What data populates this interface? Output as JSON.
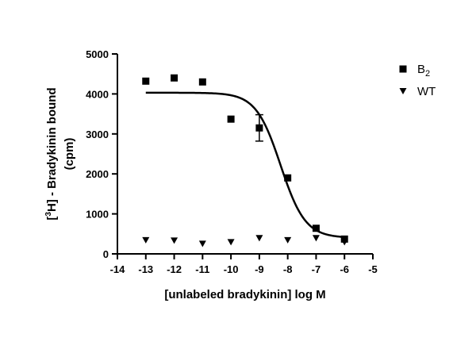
{
  "chart_data": {
    "type": "scatter",
    "title": "",
    "xlabel": "[unlabeled bradykinin] log M",
    "ylabel": {
      "prefix": "[",
      "superscript": "3",
      "main": "H] - Bradykinin bound",
      "line2": "(cpm)"
    },
    "xlim": [
      -14,
      -5
    ],
    "ylim": [
      0,
      5000
    ],
    "xticks": [
      -14,
      -13,
      -12,
      -11,
      -10,
      -9,
      -8,
      -7,
      -6,
      -5
    ],
    "yticks": [
      0,
      1000,
      2000,
      3000,
      4000,
      5000
    ],
    "grid": false,
    "legend_position": "top-right",
    "series": [
      {
        "name": "B",
        "name_subscript": "2",
        "marker": "square",
        "points": [
          {
            "x": -13,
            "y": 4320
          },
          {
            "x": -12,
            "y": 4400
          },
          {
            "x": -11,
            "y": 4300
          },
          {
            "x": -10,
            "y": 3370
          },
          {
            "x": -9,
            "y": 3150,
            "err": 330
          },
          {
            "x": -8,
            "y": 1900
          },
          {
            "x": -7,
            "y": 640
          },
          {
            "x": -6,
            "y": 370
          }
        ],
        "fit": {
          "model": "sigmoidal dose-response",
          "top": 4030,
          "bottom": 400,
          "logEC50": -8.25,
          "hill_slope": -1,
          "x_range": [
            -13,
            -6
          ]
        }
      },
      {
        "name": "WT",
        "marker": "triangle-down",
        "points": [
          {
            "x": -13,
            "y": 340
          },
          {
            "x": -12,
            "y": 330
          },
          {
            "x": -11,
            "y": 250
          },
          {
            "x": -10,
            "y": 290
          },
          {
            "x": -9,
            "y": 390
          },
          {
            "x": -8,
            "y": 340
          },
          {
            "x": -7,
            "y": 390
          },
          {
            "x": -6,
            "y": 290
          }
        ]
      }
    ]
  }
}
